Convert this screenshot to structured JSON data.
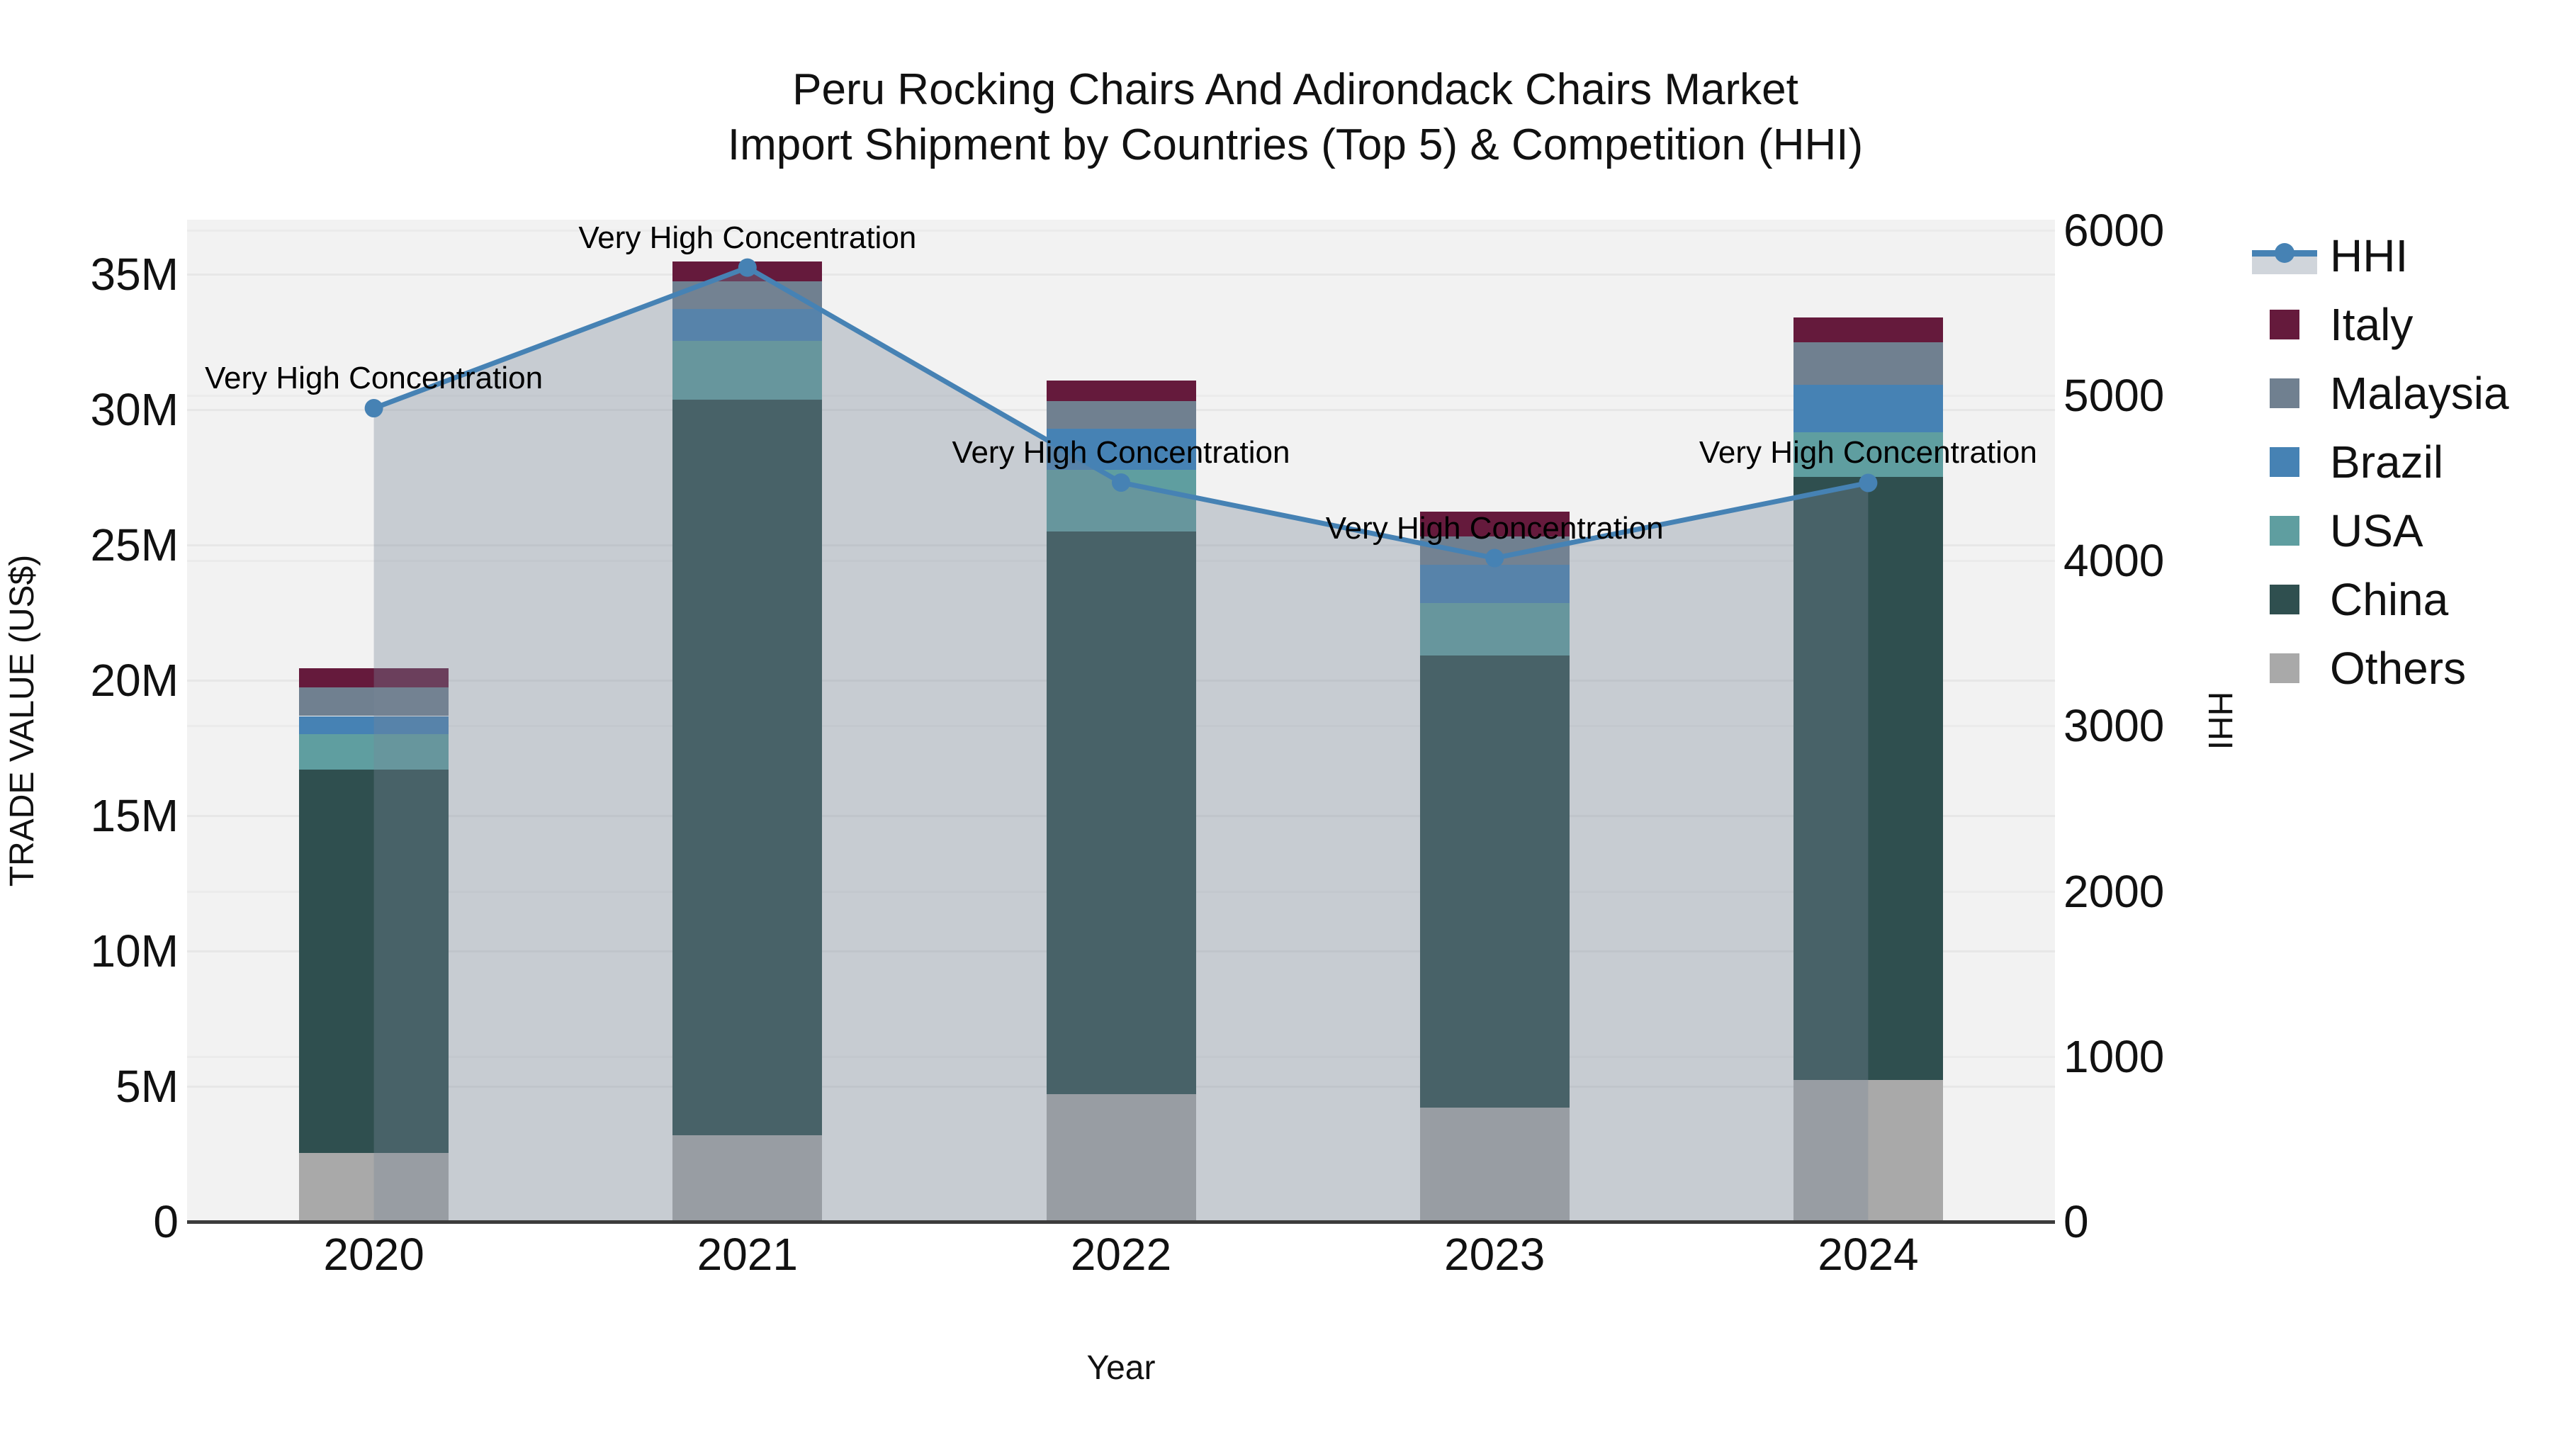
{
  "title": {
    "line1": "Peru Rocking Chairs And Adirondack Chairs Market",
    "line2": "Import Shipment by Countries (Top 5) & Competition (HHI)"
  },
  "axis_left": {
    "title": "TRADE VALUE (US$)",
    "tick_labels": [
      "0",
      "5M",
      "10M",
      "15M",
      "20M",
      "25M",
      "30M",
      "35M"
    ],
    "tick_values": [
      0,
      5,
      10,
      15,
      20,
      25,
      30,
      35
    ]
  },
  "axis_right": {
    "title": "HHI",
    "tick_labels": [
      "0",
      "1000",
      "2000",
      "3000",
      "4000",
      "5000",
      "6000"
    ],
    "tick_values": [
      0,
      1000,
      2000,
      3000,
      4000,
      5000,
      6000
    ]
  },
  "axis_x": {
    "title": "Year",
    "tick_labels": [
      "2020",
      "2021",
      "2022",
      "2023",
      "2024"
    ]
  },
  "chart_data": {
    "type": "bar+line",
    "title": "Peru Rocking Chairs And Adirondack Chairs Market Import Shipment by Countries (Top 5) & Competition (HHI)",
    "categories": [
      "2020",
      "2021",
      "2022",
      "2023",
      "2024"
    ],
    "stack_order_bottom_to_top": [
      "Others",
      "China",
      "USA",
      "Brazil",
      "Malaysia",
      "Italy"
    ],
    "series": [
      {
        "name": "Others",
        "color": "#a9a9a9",
        "values": [
          2.55,
          3.19,
          4.71,
          4.22,
          5.24
        ]
      },
      {
        "name": "China",
        "color": "#2f4f4f",
        "values": [
          14.15,
          27.17,
          20.79,
          16.7,
          22.28
        ]
      },
      {
        "name": "USA",
        "color": "#5f9ea0",
        "values": [
          1.31,
          2.19,
          2.27,
          1.93,
          1.64
        ]
      },
      {
        "name": "Brazil",
        "color": "#4682b4",
        "values": [
          0.67,
          1.17,
          1.52,
          1.42,
          1.76
        ]
      },
      {
        "name": "Malaysia",
        "color": "#708090",
        "values": [
          1.05,
          1.03,
          1.02,
          1.05,
          1.56
        ]
      },
      {
        "name": "Italy",
        "color": "#651a3c",
        "values": [
          0.73,
          0.72,
          0.77,
          0.92,
          0.94
        ]
      }
    ],
    "bar_totals_musd": [
      20.46,
      35.47,
      31.08,
      26.24,
      33.42
    ],
    "line": {
      "name": "HHI",
      "color": "#4682b4",
      "fill_color": "rgba(119,136,153,0.35)",
      "marker": "circle",
      "values": [
        4923,
        5774,
        4473,
        4016,
        4471
      ]
    },
    "annotations": [
      "Very High Concentration",
      "Very High Concentration",
      "Very High Concentration",
      "Very High Concentration",
      "Very High Concentration"
    ],
    "xlabel": "Year",
    "ylabel_left": "TRADE VALUE (US$)",
    "ylabel_right": "HHI",
    "ylim_left": [
      0,
      37.02
    ],
    "ylim_right": [
      0,
      6064
    ],
    "grid": true,
    "legend_position": "right",
    "plot_bg": "#f2f2f2"
  },
  "legend": {
    "items": [
      {
        "label": "HHI",
        "type": "line",
        "color": "#4682b4",
        "band": "rgba(119,136,153,0.35)"
      },
      {
        "label": "Italy",
        "type": "square",
        "color": "#651a3c"
      },
      {
        "label": "Malaysia",
        "type": "square",
        "color": "#708090"
      },
      {
        "label": "Brazil",
        "type": "square",
        "color": "#4682b4"
      },
      {
        "label": "USA",
        "type": "square",
        "color": "#5f9ea0"
      },
      {
        "label": "China",
        "type": "square",
        "color": "#2f4f4f"
      },
      {
        "label": "Others",
        "type": "square",
        "color": "#a9a9a9"
      }
    ]
  }
}
